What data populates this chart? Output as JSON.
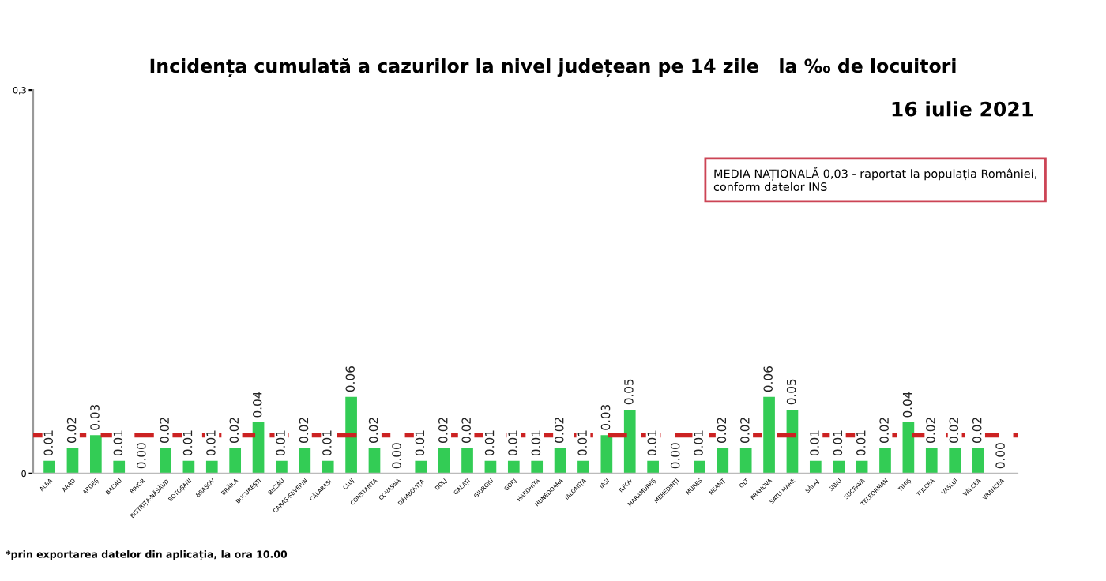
{
  "chart_data": {
    "type": "bar",
    "title": "Incidența cumulată a cazurilor la nivel județean pe 14 zile   la ‰ de locuitori",
    "categories": [
      "ALBA",
      "ARAD",
      "ARGEȘ",
      "BACĂU",
      "BIHOR",
      "BISTRIȚA-NĂSĂUD",
      "BOTOȘANI",
      "BRAȘOV",
      "BRĂILA",
      "BUCUREȘTI",
      "BUZĂU",
      "CARAȘ-SEVERIN",
      "CĂLĂRAȘI",
      "CLUJ",
      "CONSTANȚA",
      "COVASNA",
      "DÂMBOVIȚA",
      "DOLJ",
      "GALAȚI",
      "GIURGIU",
      "GORJ",
      "HARGHITA",
      "HUNEDOARA",
      "IALOMIȚA",
      "IAȘI",
      "ILFOV",
      "MARAMUREȘ",
      "MEHEDINȚI",
      "MUREȘ",
      "NEAMȚ",
      "OLT",
      "PRAHOVA",
      "SATU MARE",
      "SĂLAJ",
      "SIBIU",
      "SUCEAVA",
      "TELEORMAN",
      "TIMIȘ",
      "TULCEA",
      "VASLUI",
      "VÂLCEA",
      "VRANCEA"
    ],
    "values": [
      0.01,
      0.02,
      0.03,
      0.01,
      0.0,
      0.02,
      0.01,
      0.01,
      0.02,
      0.04,
      0.01,
      0.02,
      0.01,
      0.06,
      0.02,
      0.0,
      0.01,
      0.02,
      0.02,
      0.01,
      0.01,
      0.01,
      0.02,
      0.01,
      0.03,
      0.05,
      0.01,
      0.0,
      0.01,
      0.02,
      0.02,
      0.06,
      0.05,
      0.01,
      0.01,
      0.01,
      0.02,
      0.04,
      0.02,
      0.02,
      0.02,
      0.0
    ],
    "value_labels": [
      "0.01",
      "0.02",
      "0.03",
      "0.01",
      "0.00",
      "0.02",
      "0.01",
      "0.01",
      "0.02",
      "0.04",
      "0.01",
      "0.02",
      "0.01",
      "0.06",
      "0.02",
      "0.00",
      "0.01",
      "0.02",
      "0.02",
      "0.01",
      "0.01",
      "0.01",
      "0.02",
      "0.01",
      "0.03",
      "0.05",
      "0.01",
      "0.00",
      "0.01",
      "0.02",
      "0.02",
      "0.06",
      "0.05",
      "0.01",
      "0.01",
      "0.01",
      "0.02",
      "0.04",
      "0.02",
      "0.02",
      "0.02",
      "0.00"
    ],
    "color": "#33cc55",
    "ylim": [
      0,
      0.3
    ],
    "yticks": [
      {
        "value": 0,
        "label": "0"
      },
      {
        "value": 0.3,
        "label": "0,3"
      }
    ],
    "ref_lines": [
      {
        "axis": "y",
        "value": 0.03,
        "color": "#cc2222",
        "line_style": "dashed"
      }
    ],
    "annotations": [
      "16 iulie 2021",
      "MEDIA NAȚIONALĂ 0,03 - raportat la populația României,\nconform datelor INS",
      "*prin exportarea datelor din aplicația, la ora 10.00"
    ],
    "grid": false,
    "legend": false
  }
}
